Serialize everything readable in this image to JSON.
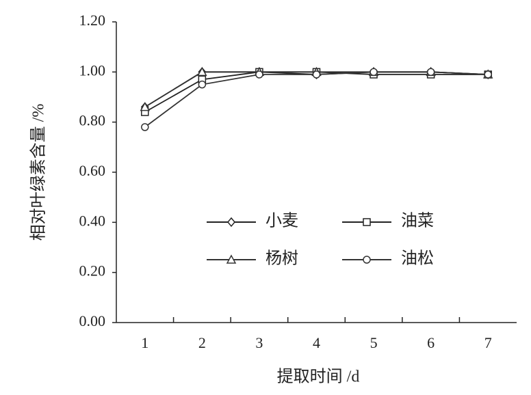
{
  "chart_data": {
    "type": "line",
    "x_label": "提取时间 /d",
    "y_label": "相对叶绿素含量 /%",
    "categories": [
      "1",
      "2",
      "3",
      "4",
      "5",
      "6",
      "7"
    ],
    "series": [
      {
        "name": "小麦",
        "color": "#222222",
        "marker": "diamond",
        "values": [
          0.86,
          1.0,
          1.0,
          0.99,
          1.0,
          1.0,
          0.99
        ]
      },
      {
        "name": "油菜",
        "color": "#222222",
        "marker": "square",
        "values": [
          0.84,
          0.97,
          1.0,
          1.0,
          0.99,
          0.99,
          0.99
        ]
      },
      {
        "name": "杨树",
        "color": "#333333",
        "marker": "triangle",
        "values": [
          0.86,
          1.0,
          1.0,
          1.0,
          1.0,
          1.0,
          0.99
        ]
      },
      {
        "name": "油松",
        "color": "#333333",
        "marker": "circle",
        "values": [
          0.78,
          0.95,
          0.99,
          0.99,
          1.0,
          1.0,
          0.99
        ]
      }
    ],
    "ylim": [
      0,
      1.2
    ],
    "yticks": [
      {
        "value": 0,
        "label": "0.00"
      },
      {
        "value": 0.2,
        "label": "0.20"
      },
      {
        "value": 0.4,
        "label": "0.40"
      },
      {
        "value": 0.6,
        "label": "0.60"
      },
      {
        "value": 0.8,
        "label": "0.80"
      },
      {
        "value": 1.0,
        "label": "1.00"
      },
      {
        "value": 1.2,
        "label": "1.20"
      }
    ],
    "grid": false
  }
}
